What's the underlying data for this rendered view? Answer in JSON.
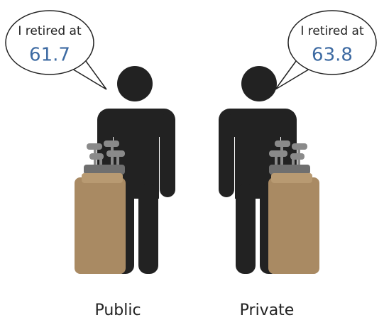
{
  "figures": [
    {
      "speech": "I retired at",
      "value": 61.7,
      "label": "Public"
    },
    {
      "speech": "I retired at",
      "value": 63.8,
      "label": "Private"
    }
  ]
}
